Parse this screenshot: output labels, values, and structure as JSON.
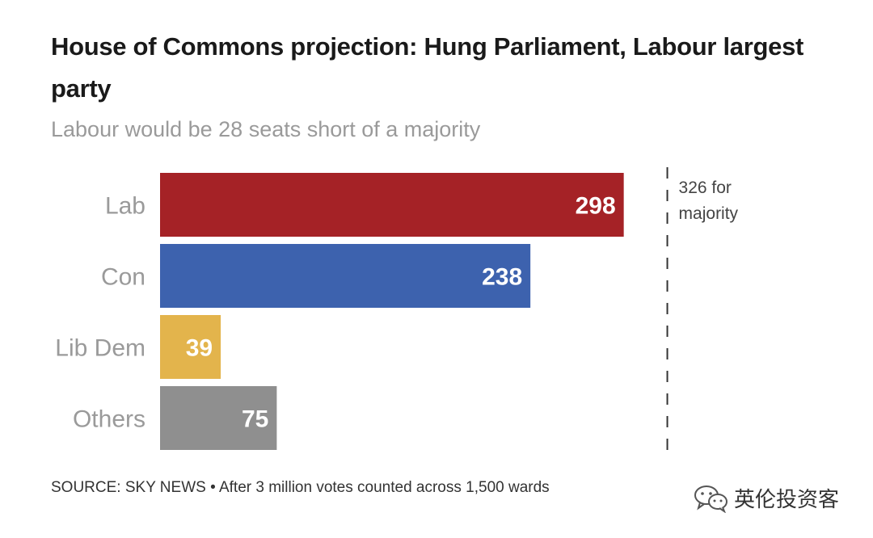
{
  "header": {
    "title": "House of Commons projection: Hung Parliament, Labour largest party",
    "subtitle": "Labour would be 28 seats short of a majority"
  },
  "chart_data": {
    "type": "bar",
    "orientation": "horizontal",
    "categories": [
      "Lab",
      "Con",
      "Lib Dem",
      "Others"
    ],
    "values": [
      298,
      238,
      39,
      75
    ],
    "colors": [
      "#a52226",
      "#3d62ae",
      "#e3b44c",
      "#8f8f8f"
    ],
    "reference_line": {
      "value": 326,
      "label_line1": "326 for",
      "label_line2": "majority",
      "style": "dashed"
    },
    "xlim": [
      0,
      340
    ],
    "grid": false
  },
  "footer": {
    "source": "SOURCE: SKY NEWS • After 3 million votes counted across 1,500 wards",
    "watermark": "英伦投资客",
    "watermark_icon": "wechat-icon"
  }
}
